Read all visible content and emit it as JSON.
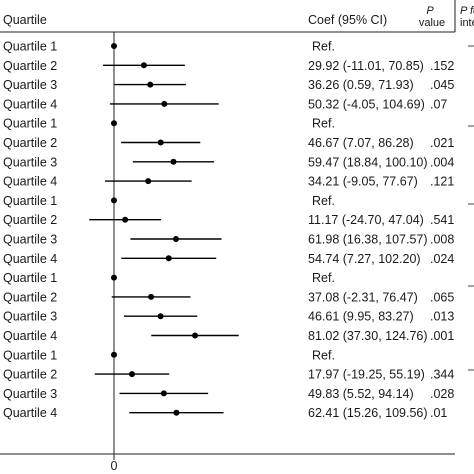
{
  "chart_data": {
    "type": "forest",
    "header": {
      "left": "Quartile",
      "coef": "Coef (95% CI)",
      "p_top": "P",
      "p_bottom": "value",
      "pint_top": "P fo",
      "pint_bottom": "inte"
    },
    "x_zero_label": "0",
    "x_range": [
      -20,
      130
    ],
    "rows": [
      {
        "label": "Quartile 1",
        "coef": null,
        "lo": null,
        "hi": null,
        "text": "Ref.",
        "p": ""
      },
      {
        "label": "Quartile 2",
        "coef": 29.92,
        "lo": -11.01,
        "hi": 70.85,
        "text": "29.92 (-11.01, 70.85)",
        "p": ".152"
      },
      {
        "label": "Quartile 3",
        "coef": 36.26,
        "lo": 0.59,
        "hi": 71.93,
        "text": "36.26 (0.59, 71.93)",
        "p": ".045"
      },
      {
        "label": "Quartile 4",
        "coef": 50.32,
        "lo": -4.05,
        "hi": 104.69,
        "text": "50.32 (-4.05, 104.69)",
        "p": ".07"
      },
      {
        "label": "Quartile 1",
        "coef": null,
        "lo": null,
        "hi": null,
        "text": "Ref.",
        "p": ""
      },
      {
        "label": "Quartile 2",
        "coef": 46.67,
        "lo": 7.07,
        "hi": 86.28,
        "text": "46.67 (7.07, 86.28)",
        "p": ".021"
      },
      {
        "label": "Quartile 3",
        "coef": 59.47,
        "lo": 18.84,
        "hi": 100.1,
        "text": "59.47 (18.84, 100.10)",
        "p": ".004"
      },
      {
        "label": "Quartile 4",
        "coef": 34.21,
        "lo": -9.05,
        "hi": 77.67,
        "text": "34.21 (-9.05, 77.67)",
        "p": ".121"
      },
      {
        "label": "Quartile 1",
        "coef": null,
        "lo": null,
        "hi": null,
        "text": "Ref.",
        "p": ""
      },
      {
        "label": "Quartile 2",
        "coef": 11.17,
        "lo": -24.7,
        "hi": 47.04,
        "text": "11.17 (-24.70, 47.04)",
        "p": ".541"
      },
      {
        "label": "Quartile 3",
        "coef": 61.98,
        "lo": 16.38,
        "hi": 107.57,
        "text": "61.98 (16.38, 107.57)",
        "p": ".008"
      },
      {
        "label": "Quartile 4",
        "coef": 54.74,
        "lo": 7.27,
        "hi": 102.2,
        "text": "54.74 (7.27, 102.20)",
        "p": ".024"
      },
      {
        "label": "Quartile 1",
        "coef": null,
        "lo": null,
        "hi": null,
        "text": "Ref.",
        "p": ""
      },
      {
        "label": "Quartile 2",
        "coef": 37.08,
        "lo": -2.31,
        "hi": 76.47,
        "text": "37.08 (-2.31, 76.47)",
        "p": ".065"
      },
      {
        "label": "Quartile 3",
        "coef": 46.61,
        "lo": 9.95,
        "hi": 83.27,
        "text": "46.61 (9.95, 83.27)",
        "p": ".013"
      },
      {
        "label": "Quartile 4",
        "coef": 81.02,
        "lo": 37.3,
        "hi": 124.76,
        "text": "81.02 (37.30, 124.76)",
        "p": ".001"
      },
      {
        "label": "Quartile 1",
        "coef": null,
        "lo": null,
        "hi": null,
        "text": "Ref.",
        "p": ""
      },
      {
        "label": "Quartile 2",
        "coef": 17.97,
        "lo": -19.25,
        "hi": 55.19,
        "text": "17.97 (-19.25, 55.19)",
        "p": ".344"
      },
      {
        "label": "Quartile 3",
        "coef": 49.83,
        "lo": 5.52,
        "hi": 94.14,
        "text": "49.83 (5.52, 94.14)",
        "p": ".028"
      },
      {
        "label": "Quartile 4",
        "coef": 62.41,
        "lo": 15.26,
        "hi": 109.56,
        "text": "62.41 (15.26, 109.56)",
        "p": ".01"
      }
    ]
  }
}
